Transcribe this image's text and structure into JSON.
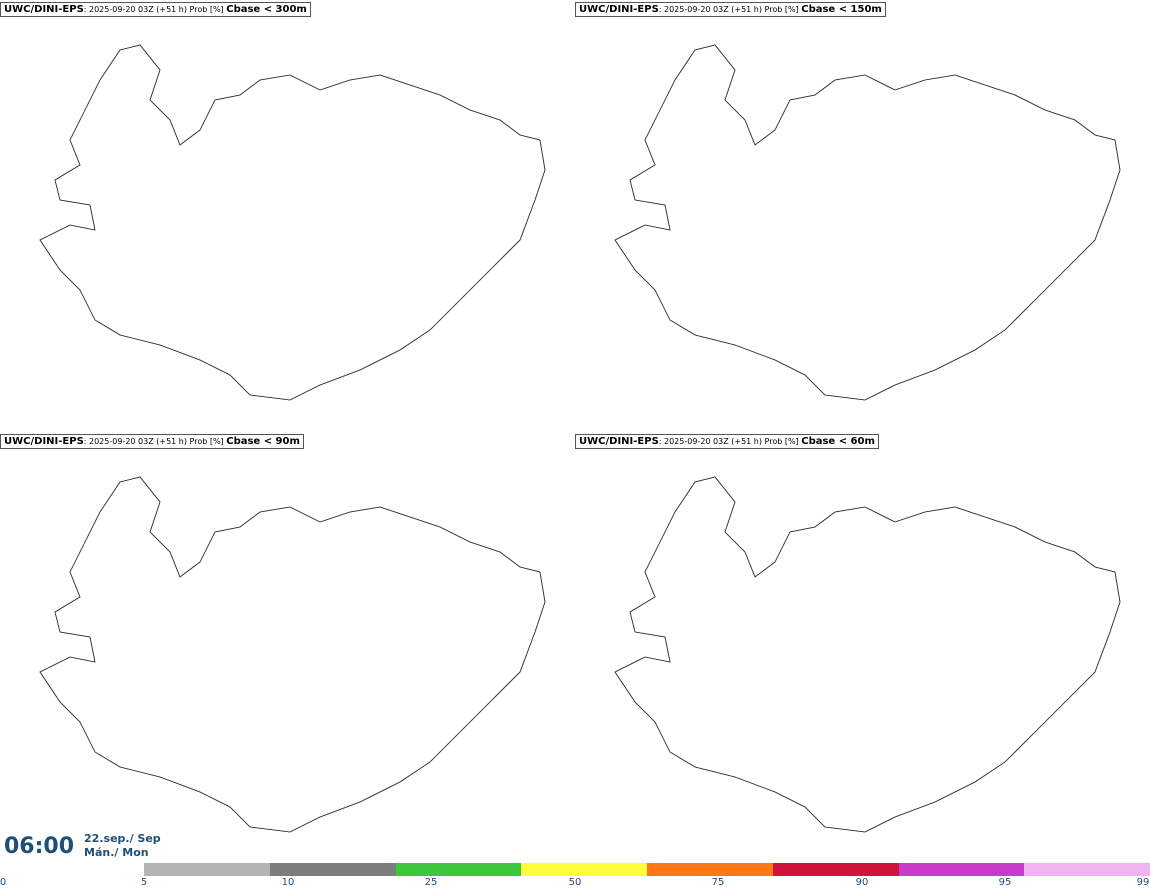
{
  "panels": [
    {
      "model": "UWC/DINI-EPS",
      "meta": ": 2025-09-20 03Z (+51 h) Prob [%] ",
      "field": "Cbase < 300m"
    },
    {
      "model": "UWC/DINI-EPS",
      "meta": ": 2025-09-20 03Z (+51 h) Prob [%] ",
      "field": "Cbase < 150m"
    },
    {
      "model": "UWC/DINI-EPS",
      "meta": ": 2025-09-20 03Z (+51 h) Prob [%] ",
      "field": "Cbase < 90m"
    },
    {
      "model": "UWC/DINI-EPS",
      "meta": ": 2025-09-20 03Z (+51 h) Prob [%] ",
      "field": "Cbase < 60m"
    }
  ],
  "valid_time": {
    "time": "06:00",
    "date_line1": "22.sep./ Sep",
    "date_line2": "Mán./ Mon"
  },
  "colorbar": {
    "ticks": [
      "0",
      "5",
      "10",
      "25",
      "50",
      "75",
      "90",
      "95",
      "99"
    ],
    "colors": [
      "#b4b4b4",
      "#7d7d7d",
      "#3cc83c",
      "#ffff3c",
      "#ff7814",
      "#d2143c",
      "#c83cc8",
      "#f0b4f0"
    ]
  }
}
